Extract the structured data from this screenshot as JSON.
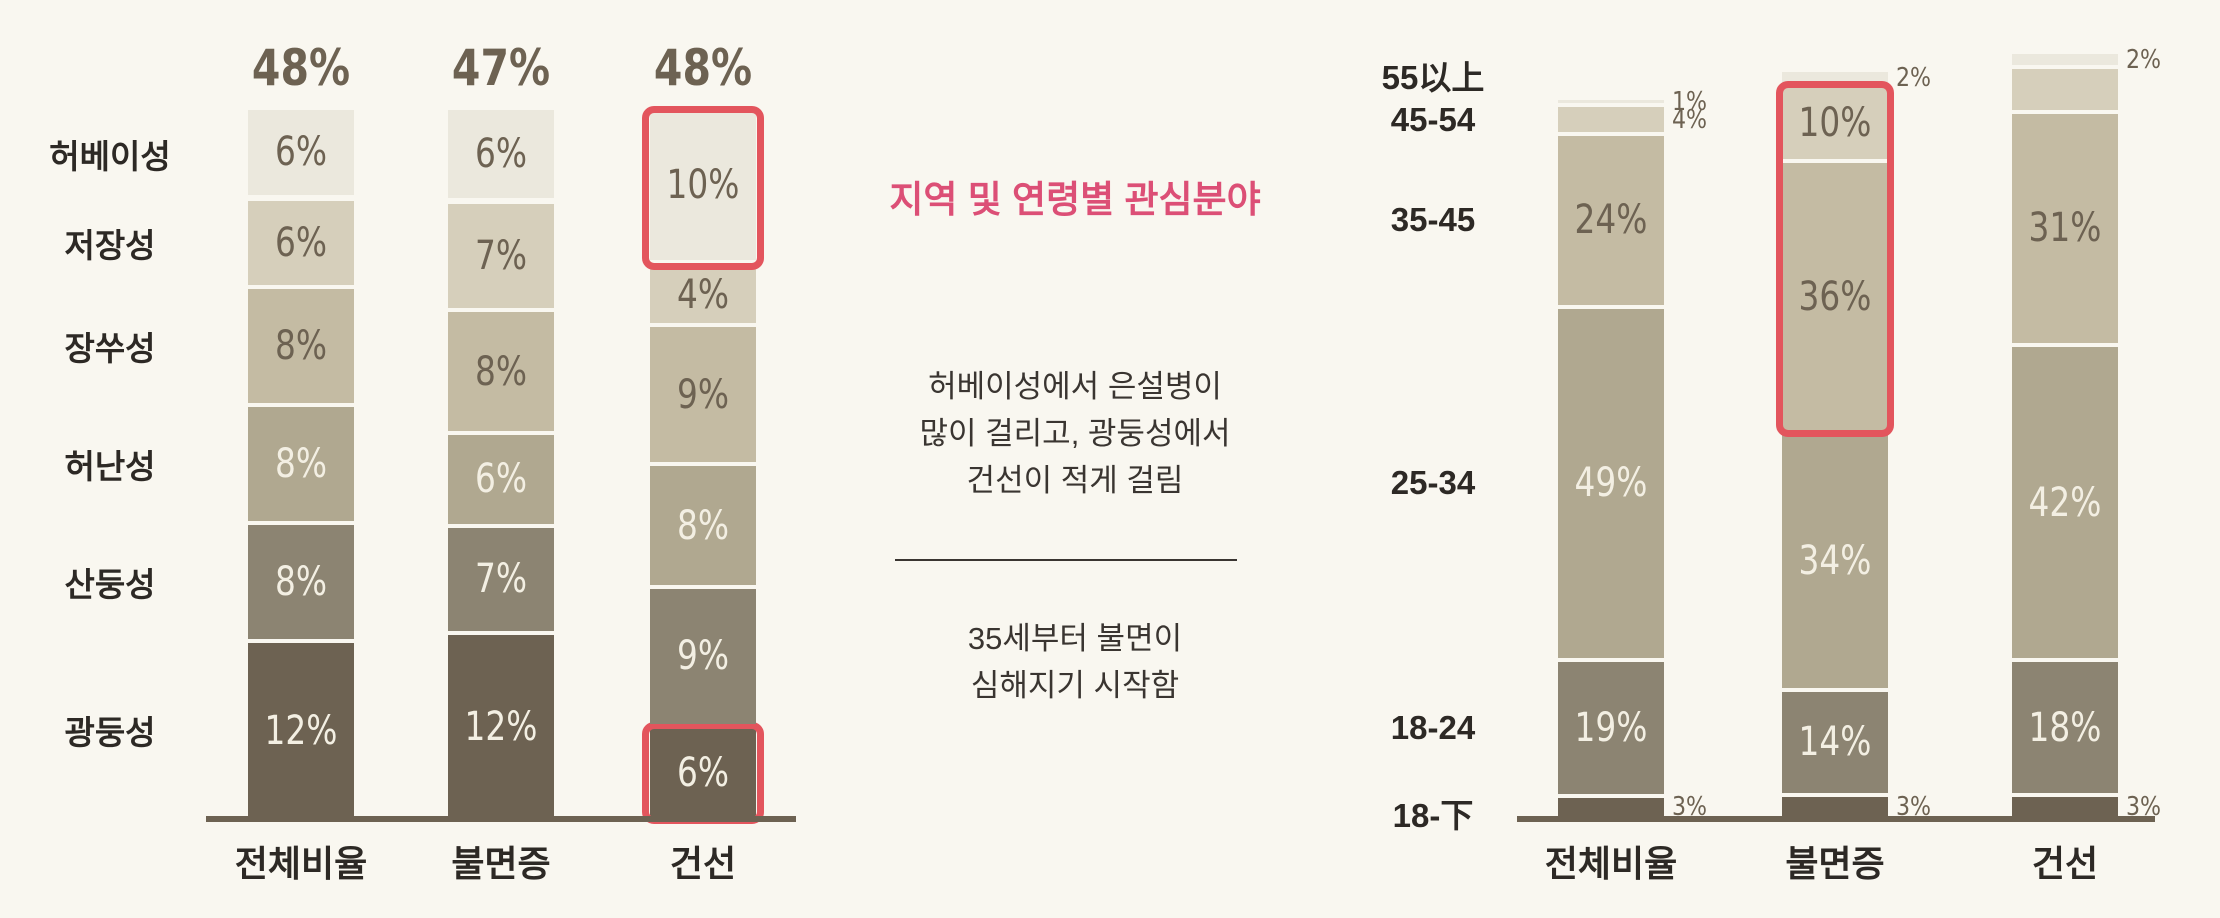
{
  "colors": {
    "background": "#f9f7f0",
    "highlight": "#e3555d",
    "title": "#dc4f76",
    "axis": "#6d6252"
  },
  "center": {
    "title": "지역 및 연령별 관심분야",
    "note1": [
      "허베이성에서 은설병이",
      "많이 걸리고, 광둥성에서",
      "건선이 적게 걸림"
    ],
    "note2": [
      "35세부터 불면이",
      "심해지기 시작함"
    ]
  },
  "chart_data": [
    {
      "type": "bar",
      "stacked": true,
      "title": "",
      "categories": [
        "전체비율",
        "불면증",
        "건선"
      ],
      "totals": [
        "48%",
        "47%",
        "48%"
      ],
      "segment_order": [
        "광둥성",
        "산둥성",
        "허난성",
        "장쑤성",
        "저장성",
        "허베이성"
      ],
      "series": [
        {
          "name": "광둥성",
          "values": [
            12,
            12,
            6
          ],
          "labels": [
            "12%",
            "12%",
            "6%"
          ],
          "color": "#6d6252"
        },
        {
          "name": "산둥성",
          "values": [
            8,
            7,
            9
          ],
          "labels": [
            "8%",
            "7%",
            "9%"
          ],
          "color": "#8c8472"
        },
        {
          "name": "허난성",
          "values": [
            8,
            6,
            8
          ],
          "labels": [
            "8%",
            "6%",
            "8%"
          ],
          "color": "#b0a890"
        },
        {
          "name": "장쑤성",
          "values": [
            8,
            8,
            9
          ],
          "labels": [
            "8%",
            "8%",
            "9%"
          ],
          "color": "#c4bba3"
        },
        {
          "name": "저장성",
          "values": [
            6,
            7,
            4
          ],
          "labels": [
            "6%",
            "7%",
            "4%"
          ],
          "color": "#d6cfbb"
        },
        {
          "name": "허베이성",
          "values": [
            6,
            6,
            10
          ],
          "labels": [
            "6%",
            "6%",
            "10%"
          ],
          "color": "#ebe8dd"
        }
      ],
      "highlighted": [
        {
          "category": "건선",
          "series": "허베이성"
        },
        {
          "category": "건선",
          "series": "광둥성"
        }
      ]
    },
    {
      "type": "bar",
      "stacked": true,
      "title": "",
      "categories": [
        "전체비율",
        "불면증",
        "건선"
      ],
      "series": [
        {
          "name": "18-下",
          "values": [
            3,
            3,
            3
          ],
          "labels": [
            "3%",
            "3%",
            "3%"
          ],
          "color": "#6d6252"
        },
        {
          "name": "18-24",
          "values": [
            19,
            14,
            18
          ],
          "labels": [
            "19%",
            "14%",
            "18%"
          ],
          "color": "#8c8472"
        },
        {
          "name": "25-34",
          "values": [
            49,
            34,
            42
          ],
          "labels": [
            "49%",
            "34%",
            "42%"
          ],
          "color": "#b0a890"
        },
        {
          "name": "35-45",
          "values": [
            24,
            36,
            31
          ],
          "labels": [
            "24%",
            "36%",
            "31%"
          ],
          "color": "#c4bba3"
        },
        {
          "name": "45-54",
          "values": [
            4,
            10,
            6
          ],
          "labels": [
            "4%",
            "10%",
            ""
          ],
          "color": "#d6cfbb"
        },
        {
          "name": "55以上",
          "values": [
            1,
            2,
            2
          ],
          "labels": [
            "1%",
            "2%",
            "2%"
          ],
          "color": "#ebe8dd"
        }
      ],
      "highlighted": [
        {
          "category": "불면증",
          "series": [
            "45-54",
            "35-45"
          ]
        }
      ]
    }
  ]
}
